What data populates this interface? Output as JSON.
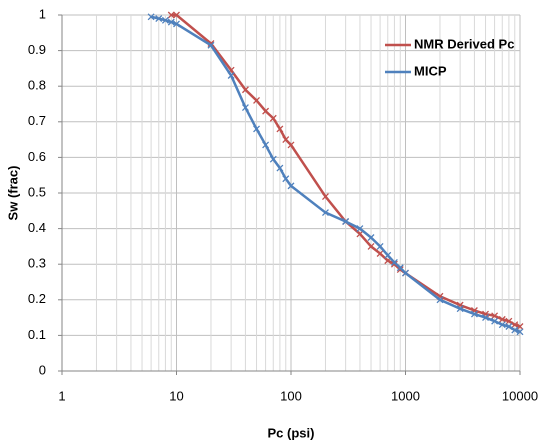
{
  "chart_data": {
    "type": "line",
    "x_label": "Pc (psi)",
    "y_label": "Sw (frac)",
    "xscale": "log",
    "grid": true,
    "legend": "upper right",
    "xlim": [
      1,
      10000
    ],
    "xticks": [
      1,
      10,
      100,
      1000,
      10000
    ],
    "ylim": [
      0,
      1
    ],
    "yticks": [
      0,
      0.1,
      0.2,
      0.3,
      0.4,
      0.5,
      0.6,
      0.7,
      0.8,
      0.9,
      1
    ],
    "series": [
      {
        "name": "NMR Derived Pc",
        "color": "#c0504d",
        "x": [
          9,
          10,
          20,
          30,
          40,
          50,
          60,
          70,
          80,
          90,
          100,
          200,
          300,
          400,
          500,
          600,
          700,
          800,
          900,
          1000,
          2000,
          3000,
          4000,
          5000,
          6000,
          7000,
          8000,
          9000,
          10000
        ],
        "values": [
          1.0,
          1.0,
          0.92,
          0.845,
          0.79,
          0.76,
          0.73,
          0.71,
          0.68,
          0.65,
          0.635,
          0.49,
          0.42,
          0.385,
          0.35,
          0.33,
          0.31,
          0.3,
          0.285,
          0.275,
          0.21,
          0.185,
          0.17,
          0.16,
          0.155,
          0.145,
          0.14,
          0.13,
          0.125
        ]
      },
      {
        "name": "MICP",
        "color": "#4f81bd",
        "x": [
          6,
          7,
          8,
          9,
          10,
          20,
          30,
          40,
          50,
          60,
          70,
          80,
          90,
          100,
          200,
          300,
          400,
          500,
          600,
          700,
          800,
          900,
          1000,
          2000,
          3000,
          4000,
          5000,
          6000,
          7000,
          8000,
          9000,
          10000
        ],
        "values": [
          0.995,
          0.99,
          0.985,
          0.98,
          0.975,
          0.915,
          0.83,
          0.74,
          0.68,
          0.635,
          0.595,
          0.57,
          0.54,
          0.52,
          0.445,
          0.42,
          0.4,
          0.375,
          0.35,
          0.325,
          0.305,
          0.29,
          0.275,
          0.2,
          0.175,
          0.16,
          0.15,
          0.14,
          0.13,
          0.125,
          0.115,
          0.11
        ]
      }
    ]
  }
}
